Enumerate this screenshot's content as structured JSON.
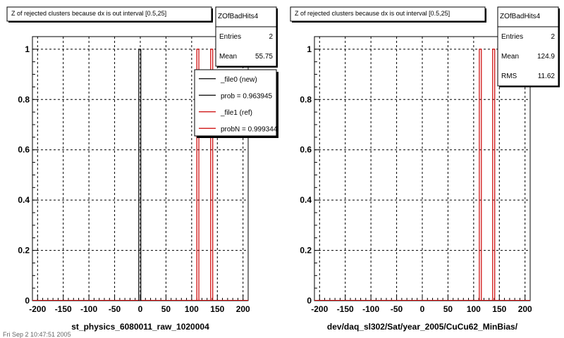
{
  "pads": [
    {
      "title": "Z of rejected clusters  because dx is out interval  [0.5,25]",
      "xlabel": "st_physics_6080011_raw_1020004",
      "stats": {
        "name": "ZOfBadHits4",
        "rows": [
          {
            "label": "Entries",
            "value": "2"
          },
          {
            "label": "Mean",
            "value": "55.75"
          }
        ]
      },
      "legend": [
        {
          "label": "_file0 (new)",
          "color": "#000000"
        },
        {
          "label": "prob = 0.963945",
          "color": "#000000"
        },
        {
          "label": "_file1 (ref)",
          "color": "#cc0000"
        },
        {
          "label": "probN = 0.999344",
          "color": "#cc0000"
        }
      ]
    },
    {
      "title": "Z of rejected clusters  because dx is out interval  [0.5,25]",
      "xlabel": "dev/daq_sl302/Sat/year_2005/CuCu62_MinBias/",
      "stats": {
        "name": "ZOfBadHits4",
        "rows": [
          {
            "label": "Entries",
            "value": "2"
          },
          {
            "label": "Mean",
            "value": "124.9"
          },
          {
            "label": "RMS",
            "value": "11.62"
          }
        ]
      },
      "legend": []
    }
  ],
  "footer": "Fri Sep  2 10:47:51 2005",
  "chart_data": [
    {
      "type": "bar",
      "title": "Z of rejected clusters  because dx is out interval  [0.5,25]",
      "xlabel": "st_physics_6080011_raw_1020004",
      "ylabel": "",
      "xlim": [
        -210,
        210
      ],
      "ylim": [
        0,
        1.05
      ],
      "xticks": [
        -200,
        -150,
        -100,
        -50,
        0,
        50,
        100,
        150,
        200
      ],
      "yticks": [
        0,
        0.2,
        0.4,
        0.6,
        0.8,
        1
      ],
      "grid": true,
      "series": [
        {
          "name": "_file0 (new)",
          "color": "#000000",
          "bins": [
            {
              "x0": -3,
              "x1": 1,
              "y": 1
            }
          ]
        },
        {
          "name": "_file1 (ref)",
          "color": "#cc0000",
          "bins": [
            {
              "x0": 110,
              "x1": 114,
              "y": 1
            },
            {
              "x0": 137,
              "x1": 141,
              "y": 1
            }
          ]
        }
      ]
    },
    {
      "type": "bar",
      "title": "Z of rejected clusters  because dx is out interval  [0.5,25]",
      "xlabel": "dev/daq_sl302/Sat/year_2005/CuCu62_MinBias/",
      "ylabel": "",
      "xlim": [
        -210,
        210
      ],
      "ylim": [
        0,
        1.05
      ],
      "xticks": [
        -200,
        -150,
        -100,
        -50,
        0,
        50,
        100,
        150,
        200
      ],
      "yticks": [
        0,
        0.2,
        0.4,
        0.6,
        0.8,
        1
      ],
      "grid": true,
      "series": [
        {
          "name": "",
          "color": "#cc0000",
          "bins": [
            {
              "x0": 111,
              "x1": 115,
              "y": 1
            },
            {
              "x0": 137,
              "x1": 141,
              "y": 1
            }
          ]
        }
      ]
    }
  ]
}
